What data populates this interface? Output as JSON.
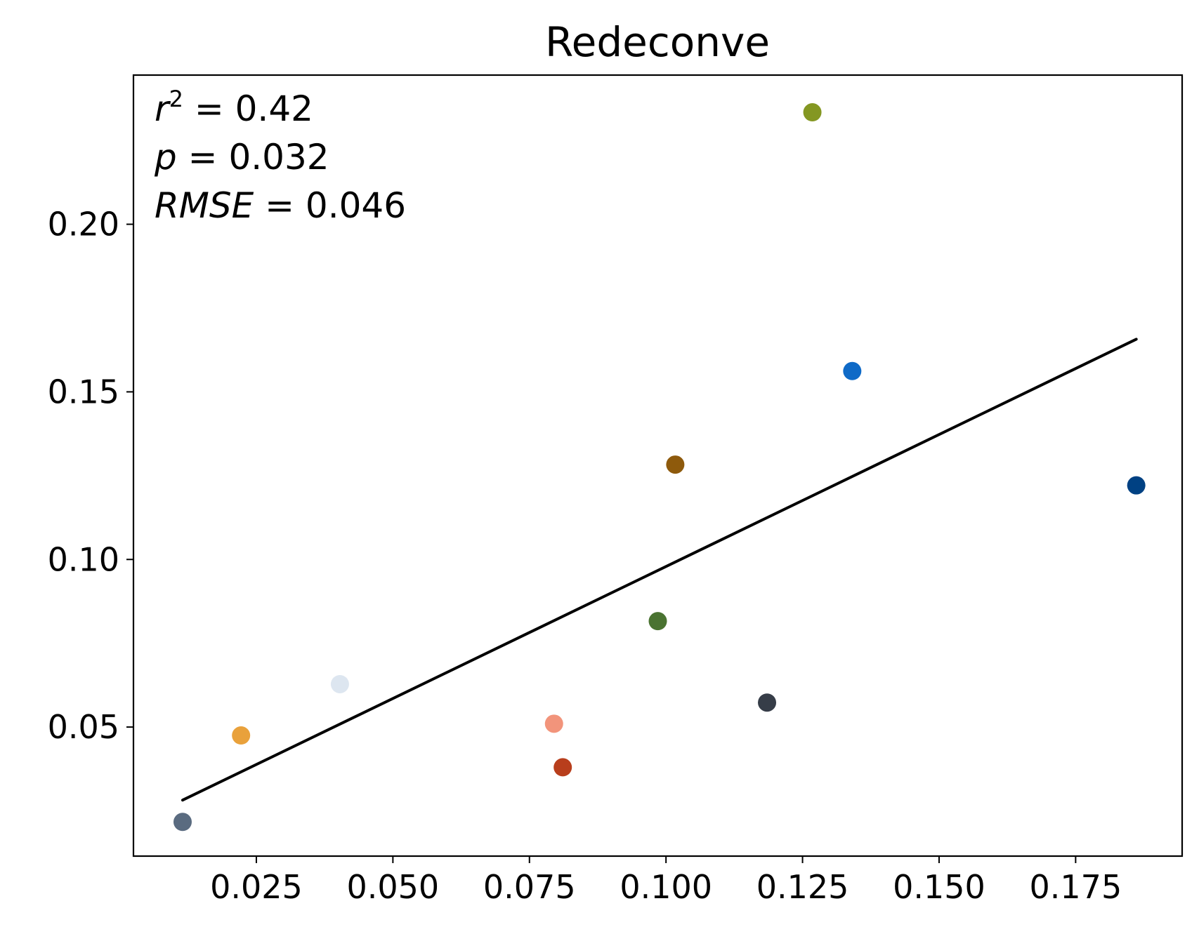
{
  "chart_data": {
    "type": "scatter",
    "title": "Redeconve",
    "xlabel": "",
    "ylabel": "",
    "xlim": [
      0.0025,
      0.1945
    ],
    "ylim": [
      0.0115,
      0.2445
    ],
    "xticks": [
      {
        "value": 0.025,
        "label": "0.025"
      },
      {
        "value": 0.05,
        "label": "0.050"
      },
      {
        "value": 0.075,
        "label": "0.075"
      },
      {
        "value": 0.1,
        "label": "0.100"
      },
      {
        "value": 0.125,
        "label": "0.125"
      },
      {
        "value": 0.15,
        "label": "0.150"
      },
      {
        "value": 0.175,
        "label": "0.175"
      }
    ],
    "yticks": [
      {
        "value": 0.05,
        "label": "0.05"
      },
      {
        "value": 0.1,
        "label": "0.10"
      },
      {
        "value": 0.15,
        "label": "0.15"
      },
      {
        "value": 0.2,
        "label": "0.20"
      }
    ],
    "grid": false,
    "points": [
      {
        "x": 0.0115,
        "y": 0.0217,
        "color": "#5a6b80"
      },
      {
        "x": 0.0222,
        "y": 0.0475,
        "color": "#e9a13b"
      },
      {
        "x": 0.0403,
        "y": 0.0628,
        "color": "#dde6f0"
      },
      {
        "x": 0.0795,
        "y": 0.051,
        "color": "#f2947b"
      },
      {
        "x": 0.0811,
        "y": 0.038,
        "color": "#b83e1c"
      },
      {
        "x": 0.0985,
        "y": 0.0816,
        "color": "#4a7331"
      },
      {
        "x": 0.1017,
        "y": 0.1283,
        "color": "#8e5a0c"
      },
      {
        "x": 0.1185,
        "y": 0.0573,
        "color": "#363d48"
      },
      {
        "x": 0.1268,
        "y": 0.2334,
        "color": "#849722"
      },
      {
        "x": 0.1341,
        "y": 0.1562,
        "color": "#0f6ac7"
      },
      {
        "x": 0.1861,
        "y": 0.1221,
        "color": "#004183"
      }
    ],
    "fit_line": {
      "x": [
        0.0115,
        0.1861
      ],
      "y": [
        0.0282,
        0.1657
      ],
      "color": "#000000"
    },
    "stats": {
      "r2_value": "0.42",
      "p_value": "0.032",
      "rmse_value": "0.046"
    }
  }
}
